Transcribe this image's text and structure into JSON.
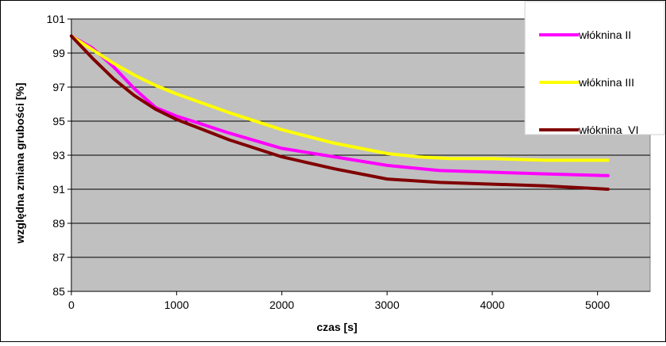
{
  "chart_data": {
    "type": "line",
    "xlabel": "czas [s]",
    "ylabel": "względna zmiana grubości [%]",
    "xlim": [
      0,
      5500
    ],
    "ylim": [
      85,
      101
    ],
    "x_ticks": [
      "0",
      "1000",
      "2000",
      "3000",
      "4000",
      "5000"
    ],
    "y_ticks": [
      "85",
      "87",
      "89",
      "91",
      "93",
      "95",
      "97",
      "99",
      "101"
    ],
    "grid": true,
    "legend_position": "top-right",
    "plot_background": "#c0c0c0",
    "series": [
      {
        "name": "włóknina II",
        "color": "#ff00ff",
        "x": [
          0,
          200,
          400,
          600,
          800,
          1000,
          1200,
          1500,
          2000,
          2500,
          3000,
          3500,
          4000,
          4500,
          5100
        ],
        "y": [
          100.0,
          99.3,
          98.2,
          96.9,
          95.8,
          95.3,
          94.9,
          94.3,
          93.4,
          92.9,
          92.4,
          92.1,
          92.0,
          91.9,
          91.8
        ]
      },
      {
        "name": "włóknina III",
        "color": "#ffff00",
        "x": [
          0,
          200,
          400,
          600,
          800,
          1000,
          1500,
          2000,
          2500,
          3000,
          3300,
          3600,
          4000,
          4500,
          5100
        ],
        "y": [
          100.0,
          99.2,
          98.4,
          97.7,
          97.1,
          96.6,
          95.5,
          94.5,
          93.7,
          93.1,
          92.9,
          92.8,
          92.8,
          92.7,
          92.7
        ]
      },
      {
        "name": "włóknina  VI",
        "color": "#800000",
        "x": [
          0,
          200,
          400,
          600,
          800,
          1000,
          1500,
          2000,
          2500,
          3000,
          3500,
          4000,
          4500,
          5100
        ],
        "y": [
          100.0,
          98.7,
          97.5,
          96.5,
          95.7,
          95.1,
          93.9,
          92.9,
          92.2,
          91.6,
          91.4,
          91.3,
          91.2,
          91.0
        ]
      }
    ]
  }
}
